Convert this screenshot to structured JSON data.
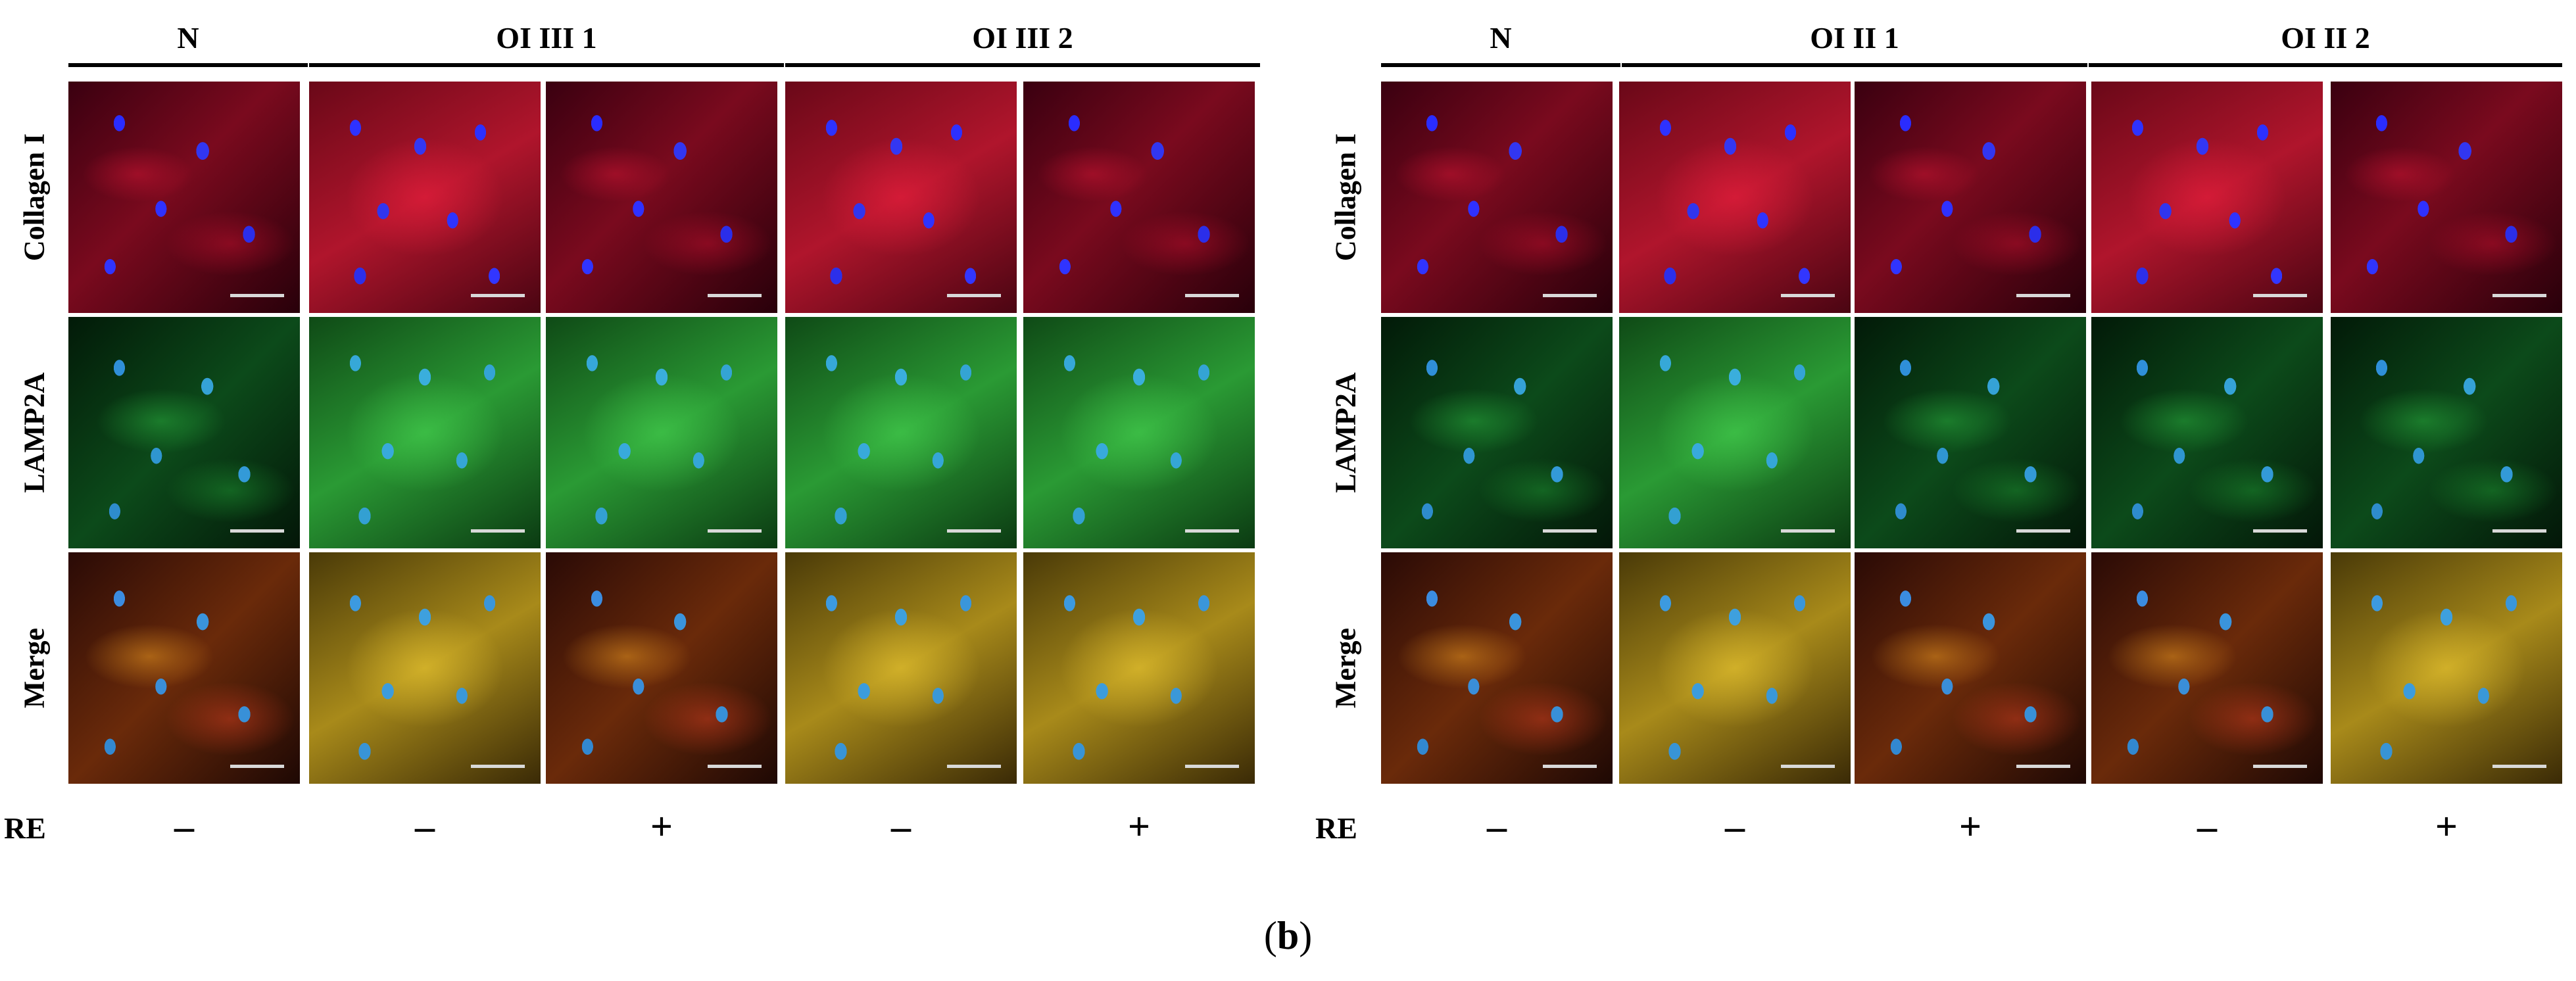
{
  "figure_label": "b",
  "row_labels": [
    "Collagen I",
    "LAMP2A",
    "Merge"
  ],
  "re_label": "RE",
  "left_panel": {
    "groups": [
      "N",
      "OI III 1",
      "OI III 2"
    ],
    "treatments": [
      "–",
      "–",
      "+",
      "–",
      "+"
    ]
  },
  "right_panel": {
    "groups": [
      "N",
      "OI II 1",
      "OI II 2"
    ],
    "treatments": [
      "–",
      "–",
      "+",
      "–",
      "+"
    ]
  },
  "colors": {
    "collagen_stain": "#c0102a",
    "lamp2a_stain": "#2a9a34",
    "nuclei_stain": "#2a2cff"
  }
}
